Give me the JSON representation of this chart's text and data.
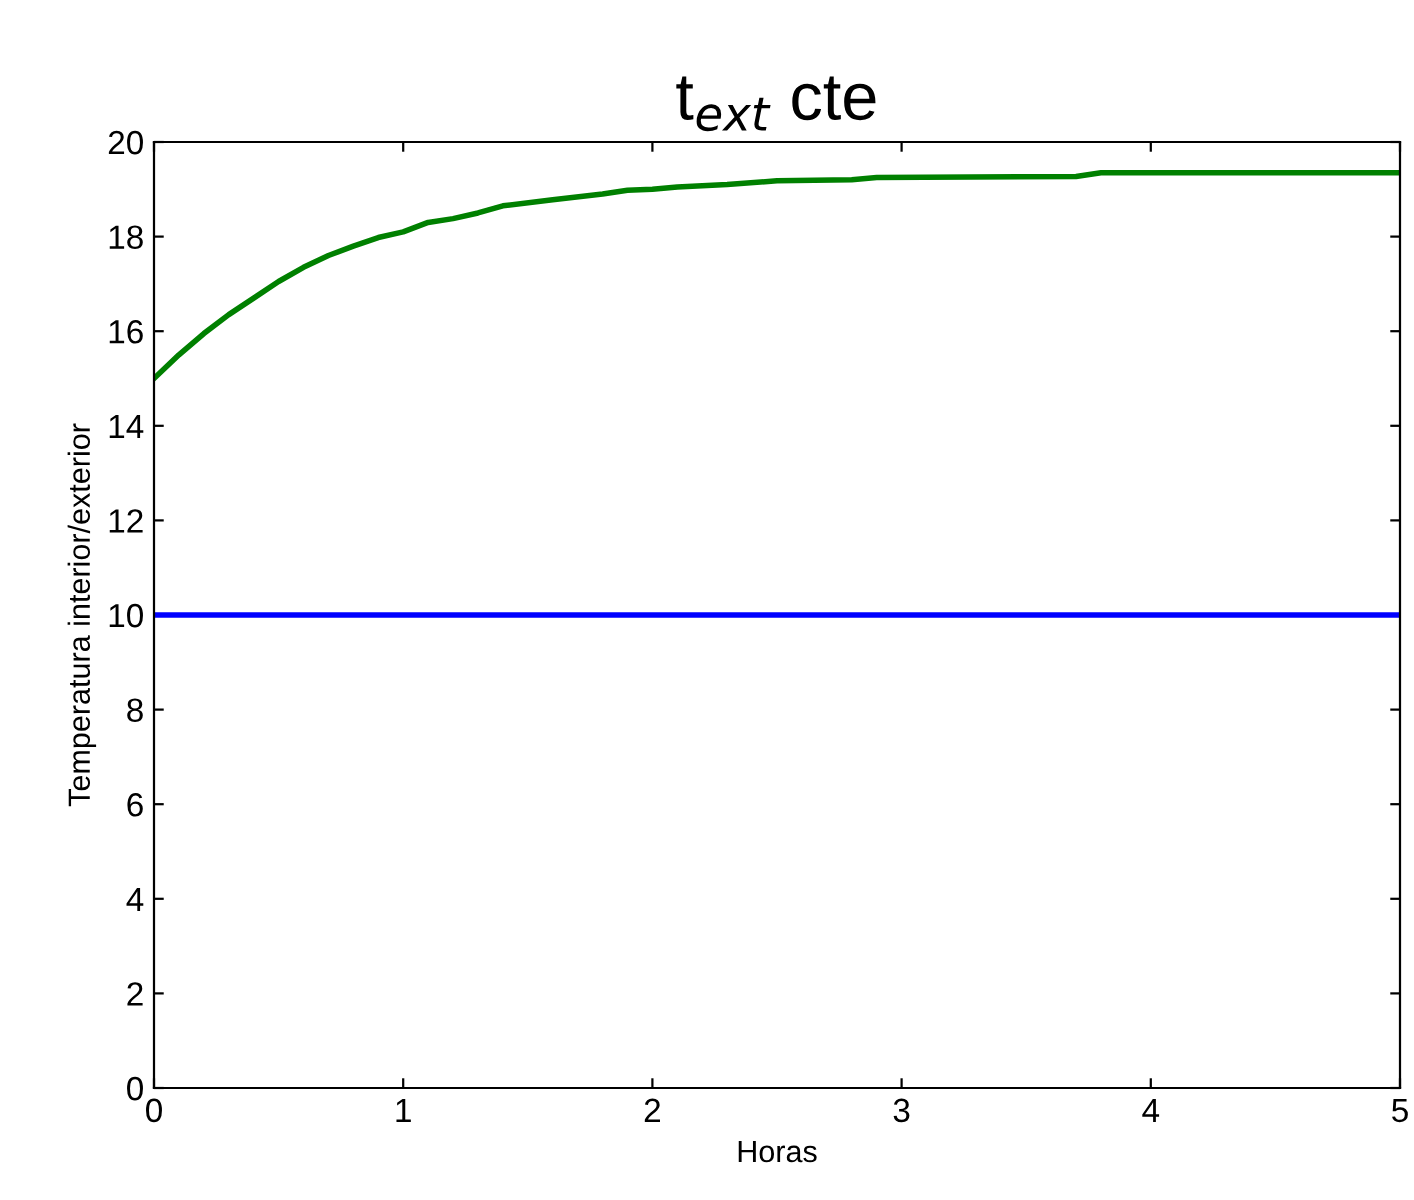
{
  "chart_data": {
    "type": "line",
    "title": "t$_{ext}$ cte",
    "xlabel": "Horas",
    "ylabel": "Temperatura interior/exterior",
    "xlim": [
      0,
      5
    ],
    "ylim": [
      0,
      20
    ],
    "xticks": [
      0,
      1,
      2,
      3,
      4,
      5
    ],
    "yticks": [
      0,
      2,
      4,
      6,
      8,
      10,
      12,
      14,
      16,
      18,
      20
    ],
    "grid": false,
    "legend": false,
    "series": [
      {
        "color": "#0000ff",
        "x": [
          0,
          5
        ],
        "values": [
          10,
          10
        ]
      },
      {
        "color": "#008000",
        "x": [
          0,
          0.1,
          0.2,
          0.3,
          0.4,
          0.5,
          0.6,
          0.7,
          0.8,
          0.9,
          1.0,
          1.1,
          1.2,
          1.3,
          1.4,
          1.6,
          1.8,
          1.9,
          2.0,
          2.1,
          2.3,
          2.5,
          2.8,
          2.9,
          3.7,
          3.8,
          5
        ],
        "values": [
          15.0,
          15.5,
          15.95,
          16.35,
          16.7,
          17.05,
          17.35,
          17.6,
          17.8,
          17.98,
          18.1,
          18.3,
          18.38,
          18.5,
          18.65,
          18.78,
          18.9,
          18.98,
          19.0,
          19.05,
          19.1,
          19.18,
          19.2,
          19.25,
          19.27,
          19.35,
          19.35
        ]
      }
    ]
  }
}
